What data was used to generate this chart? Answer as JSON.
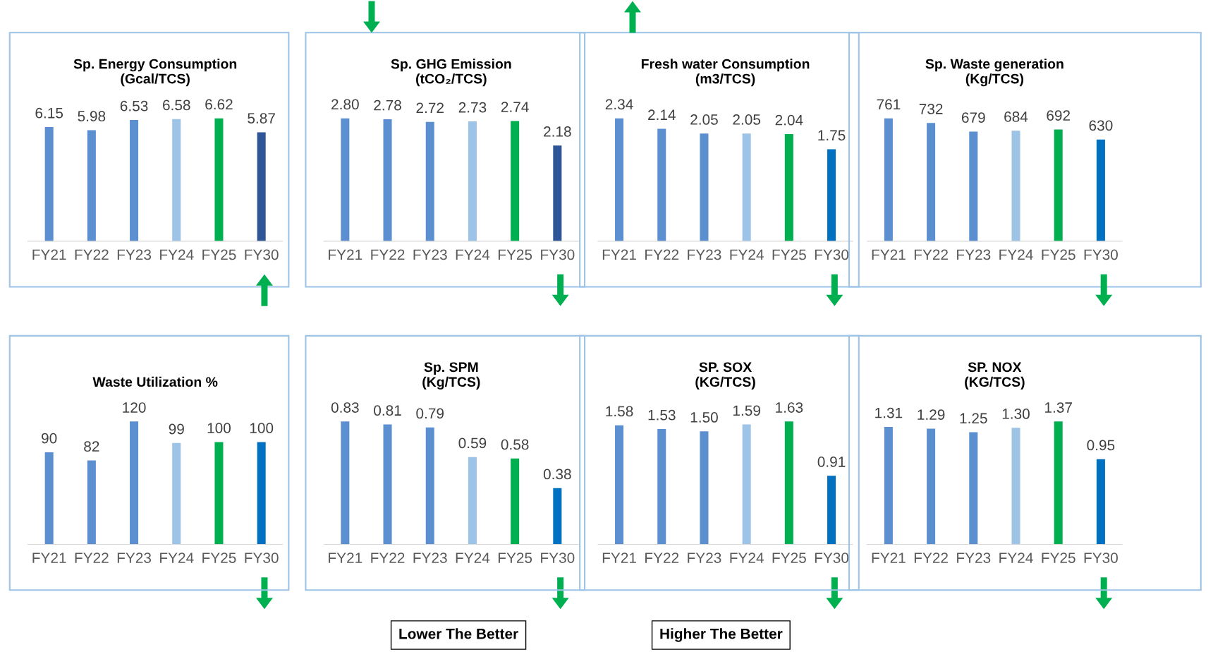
{
  "chart_data": [
    {
      "type": "bar",
      "title": "Sp. Energy Consumption\n(Gcal/TCS)",
      "categories": [
        "FY21",
        "FY22",
        "FY23",
        "FY24",
        "FY25",
        "FY30"
      ],
      "values": [
        6.15,
        5.98,
        6.53,
        6.58,
        6.62,
        5.87
      ],
      "value_labels": [
        "6.15",
        "5.98",
        "6.53",
        "6.58",
        "6.62",
        "5.87"
      ],
      "colors": [
        "#5b8fcf",
        "#5b8fcf",
        "#5b8fcf",
        "#9dc3e6",
        "#00b050",
        "#2f5597"
      ]
    },
    {
      "type": "bar",
      "title": "Sp. GHG Emission\n(tCO₂/TCS)",
      "categories": [
        "FY21",
        "FY22",
        "FY23",
        "FY24",
        "FY25",
        "FY30"
      ],
      "values": [
        2.8,
        2.78,
        2.72,
        2.73,
        2.74,
        2.18
      ],
      "value_labels": [
        "2.80",
        "2.78",
        "2.72",
        "2.73",
        "2.74",
        "2.18"
      ],
      "colors": [
        "#5b8fcf",
        "#5b8fcf",
        "#5b8fcf",
        "#9dc3e6",
        "#00b050",
        "#2f5597"
      ]
    },
    {
      "type": "bar",
      "title": "Fresh water Consumption\n(m3/TCS)",
      "categories": [
        "FY21",
        "FY22",
        "FY23",
        "FY24",
        "FY25",
        "FY30"
      ],
      "values": [
        2.34,
        2.14,
        2.05,
        2.05,
        2.04,
        1.75
      ],
      "value_labels": [
        "2.34",
        "2.14",
        "2.05",
        "2.05",
        "2.04",
        "1.75"
      ],
      "colors": [
        "#5b8fcf",
        "#5b8fcf",
        "#5b8fcf",
        "#9dc3e6",
        "#00b050",
        "#0070c0"
      ]
    },
    {
      "type": "bar",
      "title": "Sp. Waste generation\n(Kg/TCS)",
      "categories": [
        "FY21",
        "FY22",
        "FY23",
        "FY24",
        "FY25",
        "FY30"
      ],
      "values": [
        761,
        732,
        679,
        684,
        692,
        630
      ],
      "value_labels": [
        "761",
        "732",
        "679",
        "684",
        "692",
        "630"
      ],
      "colors": [
        "#5b8fcf",
        "#5b8fcf",
        "#5b8fcf",
        "#9dc3e6",
        "#00b050",
        "#0070c0"
      ]
    },
    {
      "type": "bar",
      "title": "Waste Utilization %",
      "categories": [
        "FY21",
        "FY22",
        "FY23",
        "FY24",
        "FY25",
        "FY30"
      ],
      "values": [
        90,
        82,
        120,
        99,
        100,
        100
      ],
      "value_labels": [
        "90",
        "82",
        "120",
        "99",
        "100",
        "100"
      ],
      "colors": [
        "#5b8fcf",
        "#5b8fcf",
        "#5b8fcf",
        "#9dc3e6",
        "#00b050",
        "#0070c0"
      ]
    },
    {
      "type": "bar",
      "title": "Sp. SPM\n(Kg/TCS)",
      "categories": [
        "FY21",
        "FY22",
        "FY23",
        "FY24",
        "FY25",
        "FY30"
      ],
      "values": [
        0.83,
        0.81,
        0.79,
        0.59,
        0.58,
        0.38
      ],
      "value_labels": [
        "0.83",
        "0.81",
        "0.79",
        "0.59",
        "0.58",
        "0.38"
      ],
      "colors": [
        "#5b8fcf",
        "#5b8fcf",
        "#5b8fcf",
        "#9dc3e6",
        "#00b050",
        "#0070c0"
      ]
    },
    {
      "type": "bar",
      "title": "SP. SOX\n(KG/TCS)",
      "categories": [
        "FY21",
        "FY22",
        "FY23",
        "FY24",
        "FY25",
        "FY30"
      ],
      "values": [
        1.58,
        1.53,
        1.5,
        1.59,
        1.63,
        0.91
      ],
      "value_labels": [
        "1.58",
        "1.53",
        "1.50",
        "1.59",
        "1.63",
        "0.91"
      ],
      "colors": [
        "#5b8fcf",
        "#5b8fcf",
        "#5b8fcf",
        "#9dc3e6",
        "#00b050",
        "#0070c0"
      ]
    },
    {
      "type": "bar",
      "title": "SP. NOX\n(KG/TCS)",
      "categories": [
        "FY21",
        "FY22",
        "FY23",
        "FY24",
        "FY25",
        "FY30"
      ],
      "values": [
        1.31,
        1.29,
        1.25,
        1.3,
        1.37,
        0.95
      ],
      "value_labels": [
        "1.31",
        "1.29",
        "1.25",
        "1.30",
        "1.37",
        "0.95"
      ],
      "colors": [
        "#5b8fcf",
        "#5b8fcf",
        "#5b8fcf",
        "#9dc3e6",
        "#00b050",
        "#0070c0"
      ]
    },
    {
      "type": "other",
      "annotations": [
        "Lower The Better",
        "Higher The Better"
      ]
    }
  ]
}
